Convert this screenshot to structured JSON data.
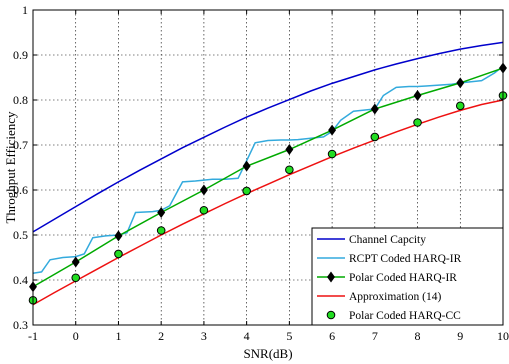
{
  "chart_data": {
    "type": "line",
    "title": "",
    "xlabel": "SNR(dB)",
    "ylabel": "Throghput Efficiency",
    "xlim": [
      -1,
      10
    ],
    "ylim": [
      0.3,
      1
    ],
    "xticks": [
      "-1",
      "0",
      "1",
      "2",
      "3",
      "4",
      "5",
      "6",
      "7",
      "8",
      "9",
      "10"
    ],
    "yticks": [
      "0.3",
      "0.4",
      "0.5",
      "0.6",
      "0.7",
      "0.8",
      "0.9",
      "1"
    ],
    "grid": true,
    "legend_position": "bottom-right",
    "series": [
      {
        "name": "Channel Capcity",
        "color": "#0000cc",
        "marker": "none",
        "x": [
          -1,
          -0.5,
          0,
          0.5,
          1,
          1.5,
          2,
          2.5,
          3,
          3.5,
          4,
          4.5,
          5,
          5.5,
          6,
          6.5,
          7,
          7.5,
          8,
          8.5,
          9,
          9.5,
          10
        ],
        "y": [
          0.507,
          0.535,
          0.563,
          0.591,
          0.618,
          0.644,
          0.669,
          0.694,
          0.717,
          0.74,
          0.762,
          0.782,
          0.801,
          0.82,
          0.837,
          0.852,
          0.867,
          0.88,
          0.892,
          0.903,
          0.913,
          0.921,
          0.928
        ]
      },
      {
        "name": "RCPT Coded HARQ-IR",
        "color": "#33aadd",
        "marker": "none",
        "x": [
          -1,
          -0.8,
          -0.6,
          -0.3,
          0,
          0.2,
          0.4,
          0.7,
          1,
          1.2,
          1.4,
          1.8,
          2,
          2.2,
          2.5,
          2.8,
          3,
          3.2,
          3.5,
          3.8,
          4,
          4.2,
          4.5,
          4.8,
          5,
          5.2,
          5.5,
          5.8,
          6,
          6.2,
          6.5,
          6.8,
          7,
          7.2,
          7.5,
          7.8,
          8,
          8.2,
          8.5,
          8.8,
          9,
          9.2,
          9.5,
          9.8,
          10
        ],
        "y": [
          0.415,
          0.418,
          0.445,
          0.45,
          0.452,
          0.458,
          0.494,
          0.498,
          0.5,
          0.505,
          0.55,
          0.552,
          0.555,
          0.565,
          0.618,
          0.62,
          0.622,
          0.624,
          0.624,
          0.626,
          0.665,
          0.705,
          0.71,
          0.711,
          0.711,
          0.712,
          0.715,
          0.718,
          0.73,
          0.755,
          0.775,
          0.778,
          0.78,
          0.81,
          0.828,
          0.83,
          0.83,
          0.831,
          0.833,
          0.835,
          0.838,
          0.84,
          0.843,
          0.86,
          0.875
        ]
      },
      {
        "name": "Polar Coded HARQ-IR",
        "color": "#00aa00",
        "marker": "diamond",
        "x": [
          -1,
          0,
          1,
          2,
          3,
          4,
          5,
          6,
          7,
          8,
          9,
          10
        ],
        "y": [
          0.385,
          0.44,
          0.498,
          0.55,
          0.6,
          0.653,
          0.69,
          0.733,
          0.78,
          0.81,
          0.838,
          0.871
        ]
      },
      {
        "name": "Approximation (14)",
        "color": "#ee1111",
        "marker": "none",
        "x": [
          -1,
          -0.5,
          0,
          0.5,
          1,
          1.5,
          2,
          2.5,
          3,
          3.5,
          4,
          4.5,
          5,
          5.5,
          6,
          6.5,
          7,
          7.5,
          8,
          8.5,
          9,
          9.5,
          10
        ],
        "y": [
          0.345,
          0.372,
          0.398,
          0.424,
          0.45,
          0.475,
          0.5,
          0.524,
          0.547,
          0.57,
          0.592,
          0.613,
          0.634,
          0.654,
          0.674,
          0.693,
          0.711,
          0.729,
          0.746,
          0.762,
          0.777,
          0.79,
          0.8
        ]
      },
      {
        "name": "Polar Coded HARQ-CC",
        "color": "#22dd22",
        "marker": "circle",
        "linestyle": "none",
        "x": [
          -1,
          0,
          1,
          2,
          3,
          4,
          5,
          6,
          7,
          8,
          9,
          10
        ],
        "y": [
          0.355,
          0.405,
          0.458,
          0.51,
          0.555,
          0.598,
          0.645,
          0.68,
          0.718,
          0.75,
          0.787,
          0.81
        ]
      }
    ]
  }
}
